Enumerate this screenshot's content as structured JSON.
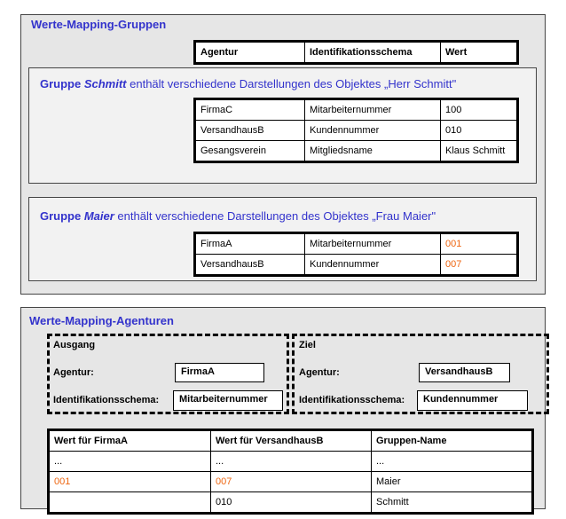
{
  "groups": {
    "title": "Werte-Mapping-Gruppen",
    "header": [
      "Agentur",
      "Identifikationsschema",
      "Wert"
    ],
    "schmitt": {
      "prefix": "Gruppe ",
      "name": "Schmitt",
      "text": " enthält verschiedene Darstellungen des Objektes „Herr Schmitt\"",
      "rows": [
        [
          "FirmaC",
          "Mitarbeiternummer",
          "100"
        ],
        [
          "VersandhausB",
          "Kundennummer",
          "010"
        ],
        [
          "Gesangsverein",
          "Mitgliedsname",
          "Klaus Schmitt"
        ]
      ]
    },
    "maier": {
      "prefix": "Gruppe ",
      "name": "Maier",
      "text": " enthält verschiedene Darstellungen des Objektes „Frau Maier\"",
      "rows": [
        [
          "FirmaA",
          "Mitarbeiternummer",
          "001"
        ],
        [
          "VersandhausB",
          "Kundennummer",
          "007"
        ]
      ]
    }
  },
  "agencies": {
    "title": "Werte-Mapping-Agenturen",
    "source": {
      "title": "Ausgang",
      "agency_label": "Agentur:",
      "agency": "FirmaA",
      "scheme_label": "Identifikationsschema:",
      "scheme": "Mitarbeiternummer"
    },
    "target": {
      "title": "Ziel",
      "agency_label": "Agentur:",
      "agency": "VersandhausB",
      "scheme_label": "Identifikationsschema:",
      "scheme": "Kundennummer"
    },
    "table": {
      "header": [
        "Wert für FirmaA",
        "Wert für VersandhausB",
        "Gruppen-Name"
      ],
      "rows": [
        [
          "...",
          "...",
          "..."
        ],
        [
          "001",
          "007",
          "Maier"
        ],
        [
          "",
          "010",
          "Schmitt"
        ]
      ]
    }
  },
  "colors": {
    "highlight": "#ee6611",
    "title": "#3333cc"
  }
}
